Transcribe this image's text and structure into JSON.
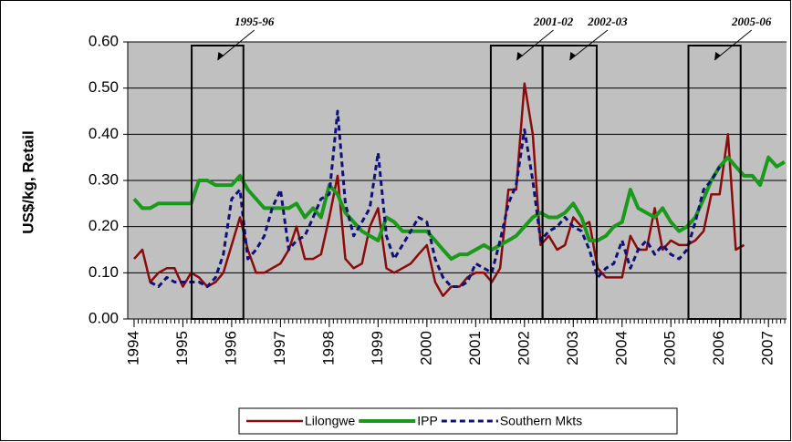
{
  "chart_data": {
    "type": "line",
    "y_label": "US$/kg, Retail",
    "x": [
      1994,
      1994.17,
      1994.33,
      1994.5,
      1994.67,
      1994.83,
      1995,
      1995.17,
      1995.33,
      1995.5,
      1995.67,
      1995.83,
      1996,
      1996.17,
      1996.33,
      1996.5,
      1996.67,
      1996.83,
      1997,
      1997.17,
      1997.33,
      1997.5,
      1997.67,
      1997.83,
      1998,
      1998.17,
      1998.33,
      1998.5,
      1998.67,
      1998.83,
      1999,
      1999.17,
      1999.33,
      1999.5,
      1999.67,
      1999.83,
      2000,
      2000.17,
      2000.33,
      2000.5,
      2000.67,
      2000.83,
      2001,
      2001.17,
      2001.33,
      2001.5,
      2001.67,
      2001.83,
      2002,
      2002.17,
      2002.33,
      2002.5,
      2002.67,
      2002.83,
      2003,
      2003.17,
      2003.33,
      2003.5,
      2003.67,
      2003.83,
      2004,
      2004.17,
      2004.33,
      2004.5,
      2004.67,
      2004.83,
      2005,
      2005.17,
      2005.33,
      2005.5,
      2005.67,
      2005.83,
      2006,
      2006.17,
      2006.33,
      2006.5,
      2006.67,
      2006.83,
      2007,
      2007.17,
      2007.33
    ],
    "series": [
      {
        "name": "Lilongwe",
        "color": "#8b0a0a",
        "style": "solid",
        "width": 2.5,
        "values": [
          0.13,
          0.15,
          0.08,
          0.1,
          0.11,
          0.11,
          0.07,
          0.1,
          0.09,
          0.07,
          0.08,
          0.1,
          0.16,
          0.22,
          0.15,
          0.1,
          0.1,
          0.11,
          0.12,
          0.15,
          0.2,
          0.13,
          0.13,
          0.14,
          0.22,
          0.31,
          0.13,
          0.11,
          0.12,
          0.2,
          0.24,
          0.11,
          0.1,
          0.11,
          0.12,
          0.14,
          0.16,
          0.08,
          0.05,
          0.07,
          0.07,
          0.09,
          0.1,
          0.1,
          0.08,
          0.11,
          0.28,
          0.28,
          0.51,
          0.4,
          0.16,
          0.18,
          0.15,
          0.16,
          0.22,
          0.2,
          0.21,
          0.11,
          0.09,
          0.09,
          0.09,
          0.18,
          0.15,
          0.15,
          0.24,
          0.15,
          0.17,
          0.16,
          0.16,
          0.17,
          0.19,
          0.27,
          0.27,
          0.4,
          0.15,
          0.16,
          null,
          null,
          null,
          null,
          null
        ]
      },
      {
        "name": "IPP",
        "color": "#1a9a1a",
        "style": "solid",
        "width": 4,
        "values": [
          0.26,
          0.24,
          0.24,
          0.25,
          0.25,
          0.25,
          0.25,
          0.25,
          0.3,
          0.3,
          0.29,
          0.29,
          0.29,
          0.31,
          0.28,
          0.26,
          0.24,
          0.24,
          0.24,
          0.24,
          0.25,
          0.22,
          0.24,
          0.22,
          0.29,
          0.27,
          0.23,
          0.21,
          0.19,
          0.18,
          0.17,
          0.22,
          0.21,
          0.19,
          0.19,
          0.19,
          0.19,
          0.17,
          0.15,
          0.13,
          0.14,
          0.14,
          0.15,
          0.16,
          0.15,
          0.16,
          0.17,
          0.18,
          0.2,
          0.22,
          0.23,
          0.22,
          0.22,
          0.23,
          0.25,
          0.22,
          0.17,
          0.17,
          0.18,
          0.2,
          0.21,
          0.28,
          0.24,
          0.23,
          0.22,
          0.24,
          0.21,
          0.19,
          0.2,
          0.22,
          0.26,
          0.3,
          0.33,
          0.35,
          0.33,
          0.31,
          0.31,
          0.29,
          0.35,
          0.33,
          0.34
        ]
      },
      {
        "name": "Southern Mkts",
        "color": "#10107a",
        "style": "dashed",
        "width": 3,
        "values": [
          null,
          null,
          0.08,
          0.07,
          0.09,
          0.08,
          0.08,
          0.08,
          0.08,
          0.07,
          0.09,
          0.14,
          0.26,
          0.28,
          0.13,
          0.15,
          0.18,
          0.24,
          0.28,
          0.15,
          0.17,
          0.18,
          0.22,
          0.26,
          0.27,
          0.45,
          0.25,
          0.18,
          0.21,
          0.24,
          0.36,
          0.18,
          0.13,
          0.16,
          0.19,
          0.22,
          0.21,
          0.13,
          0.09,
          0.07,
          0.07,
          0.08,
          0.12,
          0.11,
          0.1,
          0.17,
          0.25,
          0.29,
          0.41,
          0.3,
          0.17,
          0.19,
          0.2,
          0.22,
          0.2,
          0.19,
          0.15,
          0.09,
          0.11,
          0.12,
          0.17,
          0.11,
          0.15,
          0.17,
          0.14,
          0.16,
          0.14,
          0.13,
          0.15,
          0.21,
          0.28,
          0.3,
          0.33,
          null,
          null,
          null,
          null,
          null,
          null,
          null,
          null
        ]
      }
    ],
    "periods": [
      {
        "label": "1995-96",
        "start": 1995.18,
        "end": 1996.24
      },
      {
        "label": "2001-02",
        "start": 2001.31,
        "end": 2002.37
      },
      {
        "label": "2002-03",
        "start": 2002.37,
        "end": 2003.48
      },
      {
        "label": "2005-06",
        "start": 2005.36,
        "end": 2006.43
      }
    ],
    "xlim": [
      1993.87,
      2007.37
    ],
    "xticks": [
      1994,
      1995,
      1996,
      1997,
      1998,
      1999,
      2000,
      2001,
      2002,
      2003,
      2004,
      2005,
      2006,
      2007
    ],
    "ylim": [
      0,
      0.6
    ],
    "yticks": [
      {
        "value": 0,
        "label": "0.00"
      },
      {
        "value": 0.1,
        "label": "0.10"
      },
      {
        "value": 0.2,
        "label": "0.20"
      },
      {
        "value": 0.3,
        "label": "0.30"
      },
      {
        "value": 0.4,
        "label": "0.40"
      },
      {
        "value": 0.5,
        "label": "0.50"
      },
      {
        "value": 0.6,
        "label": "0.60"
      }
    ],
    "grid": true,
    "plot_background": "#c0c0c0",
    "legend": "bottom"
  }
}
